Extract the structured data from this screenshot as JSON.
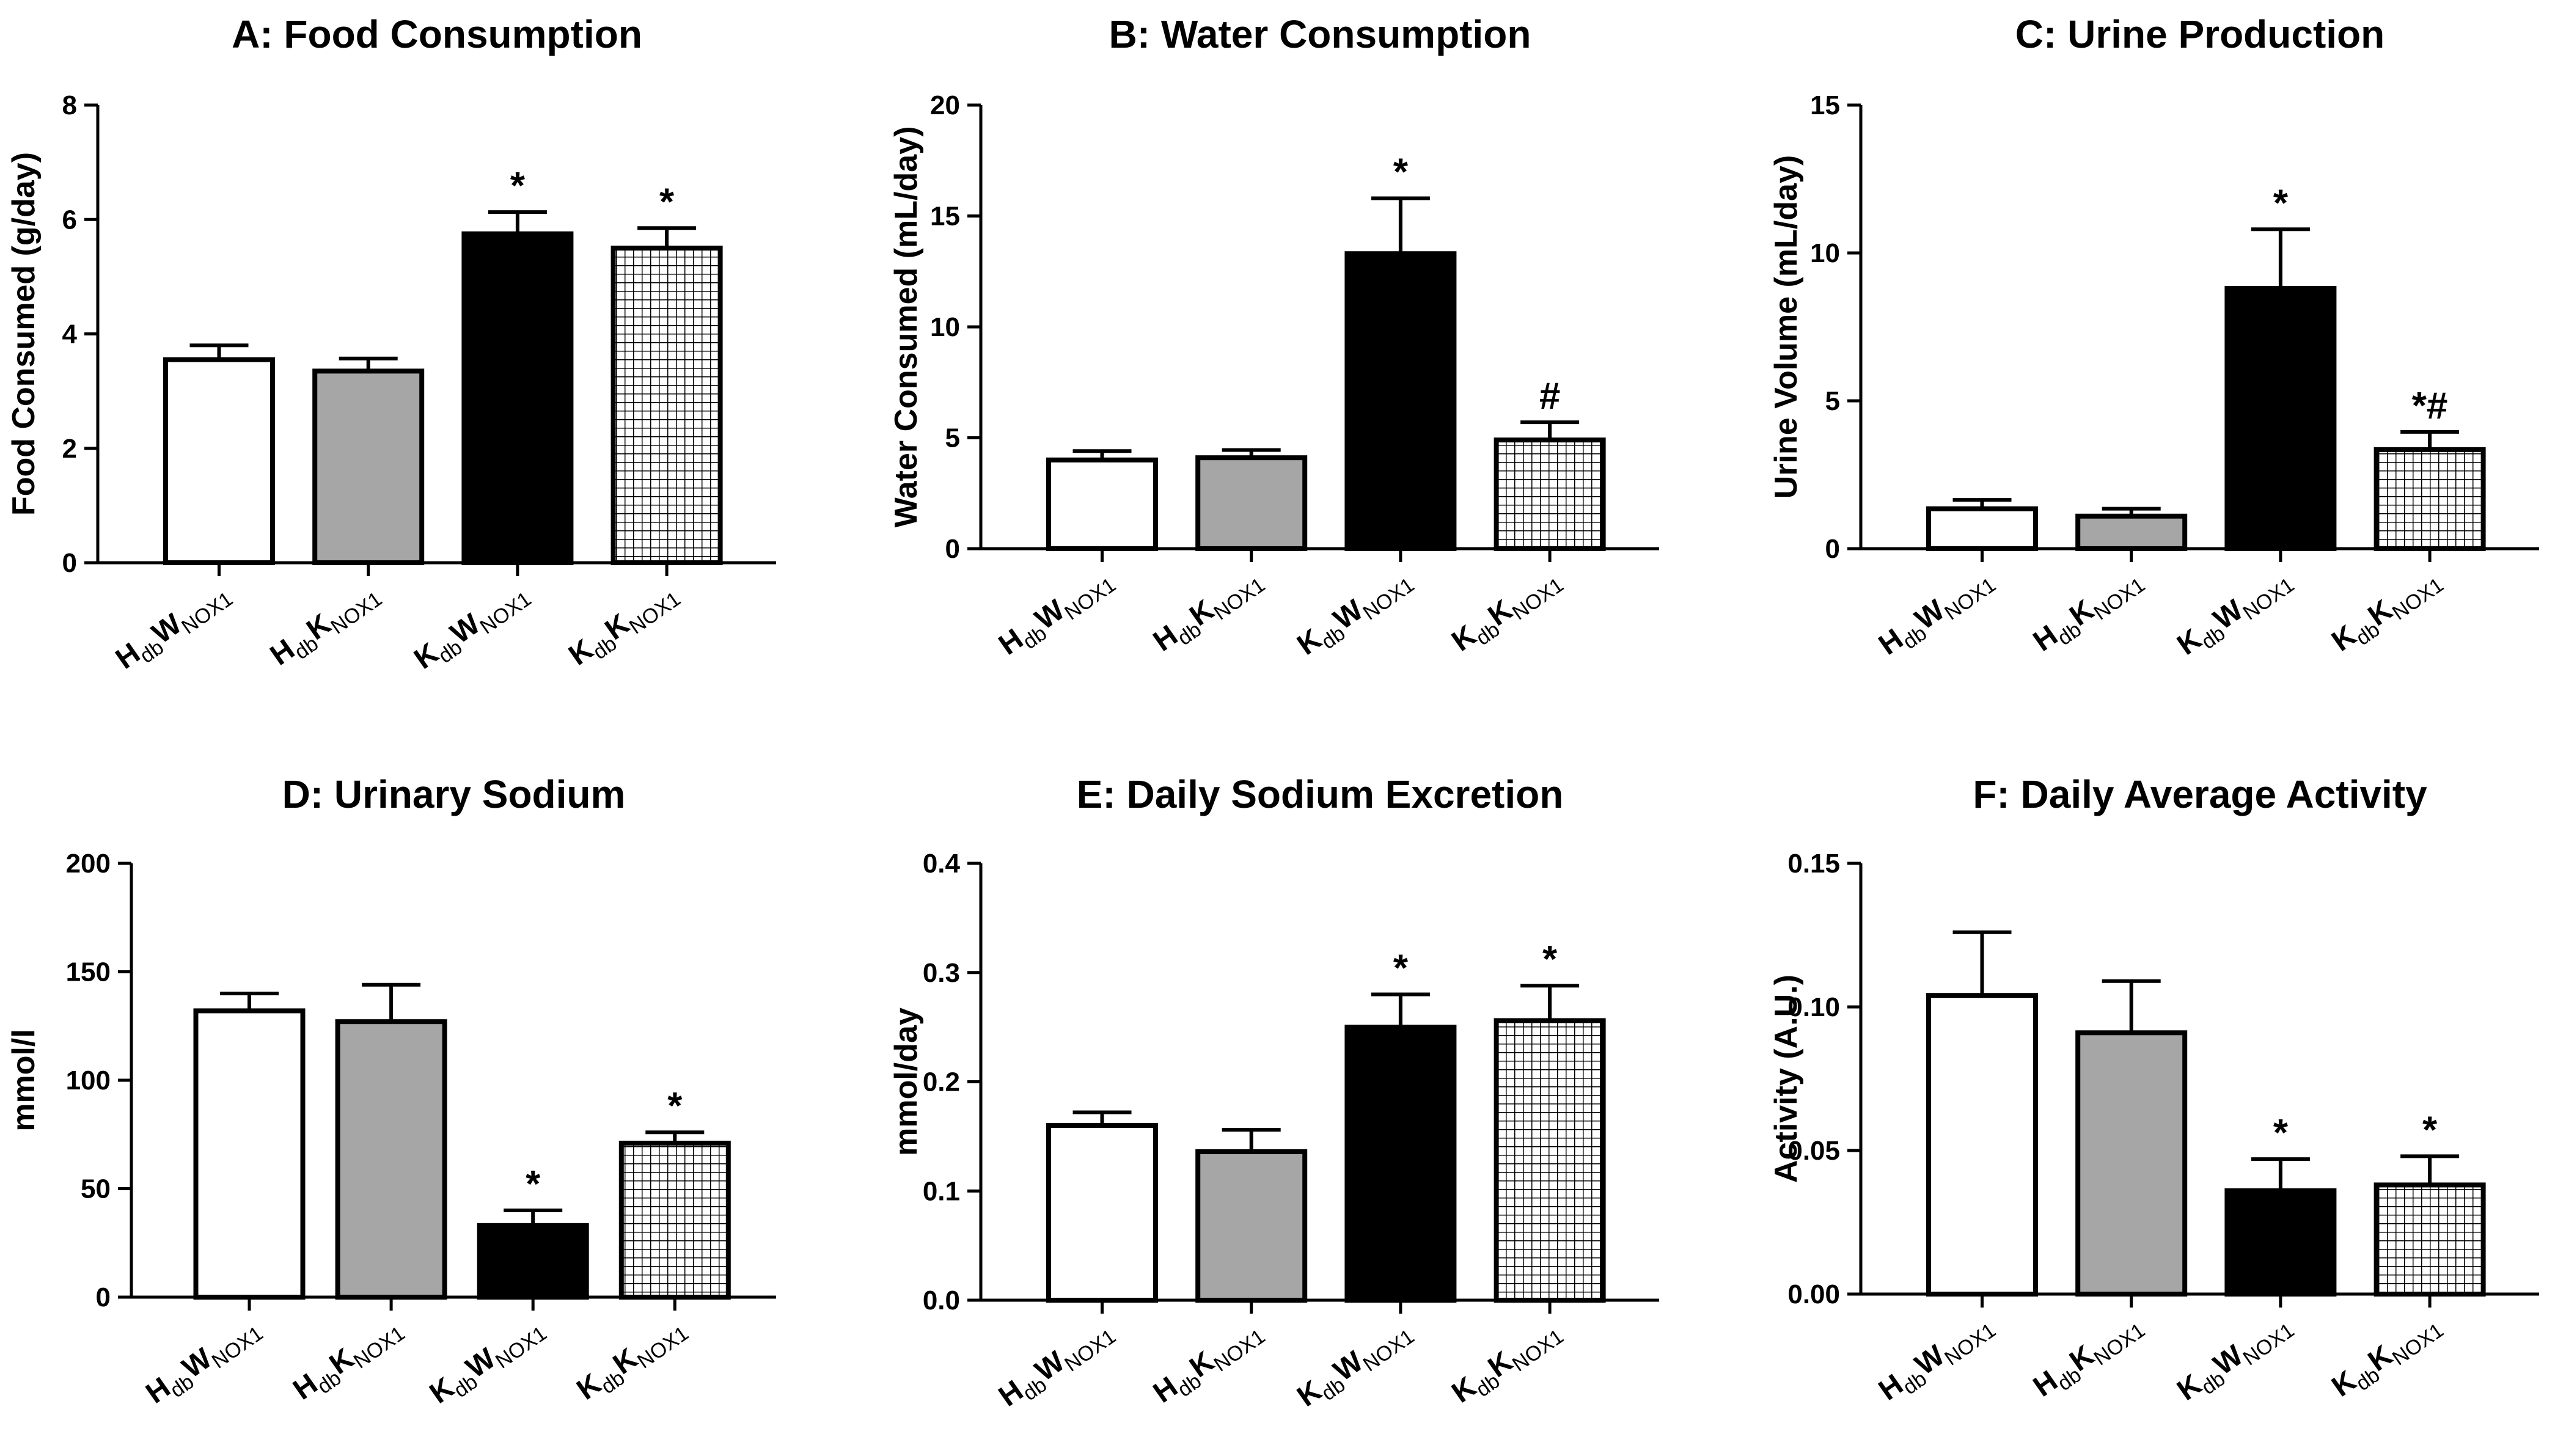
{
  "chart_data": [
    {
      "type": "bar",
      "title": "A: Food Consumption",
      "xlabel": "",
      "ylabel": "Food Consumed (g/day)",
      "ylim": [
        0,
        8
      ],
      "yticks": [
        "0",
        "2",
        "4",
        "6",
        "8"
      ],
      "categories": [
        {
          "main1": "H",
          "sub1": "db",
          "main2": "W",
          "sub2": "NOX1"
        },
        {
          "main1": "H",
          "sub1": "db",
          "main2": "K",
          "sub2": "NOX1"
        },
        {
          "main1": "K",
          "sub1": "db",
          "main2": "W",
          "sub2": "NOX1"
        },
        {
          "main1": "K",
          "sub1": "db",
          "main2": "K",
          "sub2": "NOX1"
        }
      ],
      "values": [
        3.55,
        3.35,
        5.75,
        5.5
      ],
      "errors": [
        0.25,
        0.22,
        0.38,
        0.35
      ],
      "annotations": [
        "",
        "",
        "*",
        "*"
      ]
    },
    {
      "type": "bar",
      "title": "B: Water Consumption",
      "xlabel": "",
      "ylabel": "Water Consumed (mL/day)",
      "ylim": [
        0,
        20
      ],
      "yticks": [
        "0",
        "5",
        "10",
        "15",
        "20"
      ],
      "categories": [
        {
          "main1": "H",
          "sub1": "db",
          "main2": "W",
          "sub2": "NOX1"
        },
        {
          "main1": "H",
          "sub1": "db",
          "main2": "K",
          "sub2": "NOX1"
        },
        {
          "main1": "K",
          "sub1": "db",
          "main2": "W",
          "sub2": "NOX1"
        },
        {
          "main1": "K",
          "sub1": "db",
          "main2": "K",
          "sub2": "NOX1"
        }
      ],
      "values": [
        4.0,
        4.1,
        13.3,
        4.9
      ],
      "errors": [
        0.4,
        0.35,
        2.5,
        0.8
      ],
      "annotations": [
        "",
        "",
        "*",
        "#"
      ]
    },
    {
      "type": "bar",
      "title": "C: Urine Production",
      "xlabel": "",
      "ylabel": "Urine Volume (mL/day)",
      "ylim": [
        0,
        15
      ],
      "yticks": [
        "0",
        "5",
        "10",
        "15"
      ],
      "categories": [
        {
          "main1": "H",
          "sub1": "db",
          "main2": "W",
          "sub2": "NOX1"
        },
        {
          "main1": "H",
          "sub1": "db",
          "main2": "K",
          "sub2": "NOX1"
        },
        {
          "main1": "K",
          "sub1": "db",
          "main2": "W",
          "sub2": "NOX1"
        },
        {
          "main1": "K",
          "sub1": "db",
          "main2": "K",
          "sub2": "NOX1"
        }
      ],
      "values": [
        1.35,
        1.1,
        8.8,
        3.35
      ],
      "errors": [
        0.3,
        0.25,
        2.0,
        0.6
      ],
      "annotations": [
        "",
        "",
        "*",
        "*#"
      ]
    },
    {
      "type": "bar",
      "title": "D: Urinary Sodium",
      "xlabel": "",
      "ylabel": "mmol/l",
      "ylim": [
        0,
        200
      ],
      "yticks": [
        "0",
        "50",
        "100",
        "150",
        "200"
      ],
      "categories": [
        {
          "main1": "H",
          "sub1": "db",
          "main2": "W",
          "sub2": "NOX1"
        },
        {
          "main1": "H",
          "sub1": "db",
          "main2": "K",
          "sub2": "NOX1"
        },
        {
          "main1": "K",
          "sub1": "db",
          "main2": "W",
          "sub2": "NOX1"
        },
        {
          "main1": "K",
          "sub1": "db",
          "main2": "K",
          "sub2": "NOX1"
        }
      ],
      "values": [
        132,
        127,
        33,
        71
      ],
      "errors": [
        8,
        17,
        7,
        5
      ],
      "annotations": [
        "",
        "",
        "*",
        "*"
      ]
    },
    {
      "type": "bar",
      "title": "E: Daily Sodium Excretion",
      "xlabel": "",
      "ylabel": "mmol/day",
      "ylim": [
        0,
        0.4
      ],
      "yticks": [
        "0.0",
        "0.1",
        "0.2",
        "0.3",
        "0.4"
      ],
      "categories": [
        {
          "main1": "H",
          "sub1": "db",
          "main2": "W",
          "sub2": "NOX1"
        },
        {
          "main1": "H",
          "sub1": "db",
          "main2": "K",
          "sub2": "NOX1"
        },
        {
          "main1": "K",
          "sub1": "db",
          "main2": "W",
          "sub2": "NOX1"
        },
        {
          "main1": "K",
          "sub1": "db",
          "main2": "K",
          "sub2": "NOX1"
        }
      ],
      "values": [
        0.16,
        0.136,
        0.25,
        0.256
      ],
      "errors": [
        0.012,
        0.02,
        0.03,
        0.032
      ],
      "annotations": [
        "",
        "",
        "*",
        "*"
      ]
    },
    {
      "type": "bar",
      "title": "F: Daily Average Activity",
      "xlabel": "",
      "ylabel": "Activity (A.U.)",
      "ylim": [
        0,
        0.15
      ],
      "yticks": [
        "0.00",
        "0.05",
        "0.10",
        "0.15"
      ],
      "categories": [
        {
          "main1": "H",
          "sub1": "db",
          "main2": "W",
          "sub2": "NOX1"
        },
        {
          "main1": "H",
          "sub1": "db",
          "main2": "K",
          "sub2": "NOX1"
        },
        {
          "main1": "K",
          "sub1": "db",
          "main2": "W",
          "sub2": "NOX1"
        },
        {
          "main1": "K",
          "sub1": "db",
          "main2": "K",
          "sub2": "NOX1"
        }
      ],
      "values": [
        0.104,
        0.091,
        0.036,
        0.038
      ],
      "errors": [
        0.022,
        0.018,
        0.011,
        0.01
      ],
      "annotations": [
        "",
        "",
        "*",
        "*"
      ]
    }
  ],
  "style": {
    "bar_fills": [
      "#ffffff",
      "#a6a6a6",
      "#000000",
      "hatch"
    ],
    "stroke": "#000000",
    "hatch_line": "#000000",
    "hatch_bg": "#ffffff"
  }
}
